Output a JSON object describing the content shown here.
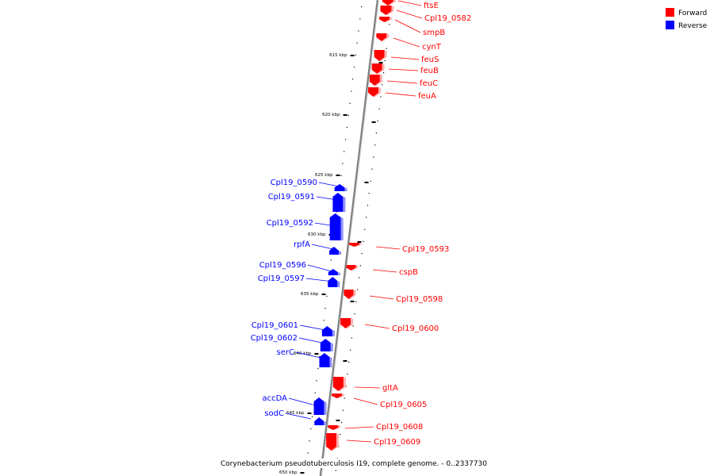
{
  "caption": "Corynebacterium pseudotuberculosis I19, complete genome. - 0..2337730",
  "legend": [
    {
      "label": "Forward",
      "color": "#ff0000"
    },
    {
      "label": "Reverse",
      "color": "#0000ff"
    }
  ],
  "colors": {
    "forward": "#ff0000",
    "reverse": "#0000ff",
    "backbone": "#808080"
  },
  "ticks": [
    "615 kbp",
    "620 kbp",
    "625 kbp",
    "630 kbp",
    "635 kbp",
    "640 kbp",
    "645 kbp",
    "650 kbp"
  ],
  "genes": [
    {
      "name": "ftsE",
      "strand": "forward"
    },
    {
      "name": "Cpl19_0582",
      "strand": "forward"
    },
    {
      "name": "smpB",
      "strand": "forward"
    },
    {
      "name": "cynT",
      "strand": "forward"
    },
    {
      "name": "feuS",
      "strand": "forward"
    },
    {
      "name": "feuB",
      "strand": "forward"
    },
    {
      "name": "feuC",
      "strand": "forward"
    },
    {
      "name": "feuA",
      "strand": "forward"
    },
    {
      "name": "Cpl19_0590",
      "strand": "reverse"
    },
    {
      "name": "Cpl19_0591",
      "strand": "reverse"
    },
    {
      "name": "Cpl19_0592",
      "strand": "reverse"
    },
    {
      "name": "rpfA",
      "strand": "reverse"
    },
    {
      "name": "Cpl19_0593",
      "strand": "forward"
    },
    {
      "name": "Cpl19_0596",
      "strand": "reverse"
    },
    {
      "name": "cspB",
      "strand": "forward"
    },
    {
      "name": "Cpl19_0597",
      "strand": "reverse"
    },
    {
      "name": "Cpl19_0598",
      "strand": "forward"
    },
    {
      "name": "Cpl19_0601",
      "strand": "reverse"
    },
    {
      "name": "Cpl19_0600",
      "strand": "forward"
    },
    {
      "name": "Cpl19_0602",
      "strand": "reverse"
    },
    {
      "name": "serC",
      "strand": "reverse"
    },
    {
      "name": "gltA",
      "strand": "forward"
    },
    {
      "name": "accDA",
      "strand": "reverse"
    },
    {
      "name": "Cpl19_0605",
      "strand": "forward"
    },
    {
      "name": "sodC",
      "strand": "reverse"
    },
    {
      "name": "Cpl19_0608",
      "strand": "forward"
    },
    {
      "name": "Cpl19_0609",
      "strand": "forward"
    }
  ]
}
